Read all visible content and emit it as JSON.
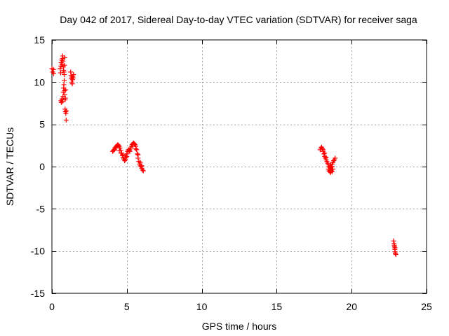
{
  "chart_data": {
    "type": "scatter",
    "title": "Day 042 of 2017, Sidereal Day-to-day VTEC variation (SDTVAR) for receiver saga",
    "xlabel": "GPS time / hours",
    "ylabel": "SDTVAR / TECUs",
    "xlim": [
      0,
      25
    ],
    "ylim": [
      -15,
      15
    ],
    "xticks": [
      0,
      5,
      10,
      15,
      20,
      25
    ],
    "yticks": [
      -15,
      -10,
      -5,
      0,
      5,
      10,
      15
    ],
    "xtick_labels": [
      "0",
      "5",
      "10",
      "15",
      "20",
      "25"
    ],
    "ytick_labels": [
      "-15",
      "-10",
      "-5",
      "0",
      "5",
      "10",
      "15"
    ],
    "grid": true,
    "marker": "+",
    "color": "#ff0000",
    "series": [
      {
        "name": "SDTVAR",
        "points": [
          [
            0.0,
            11.6
          ],
          [
            0.05,
            11.2
          ],
          [
            0.1,
            11.5
          ],
          [
            0.12,
            11.0
          ],
          [
            0.55,
            11.6
          ],
          [
            0.58,
            11.1
          ],
          [
            0.6,
            11.9
          ],
          [
            0.62,
            12.3
          ],
          [
            0.65,
            12.6
          ],
          [
            0.67,
            12.1
          ],
          [
            0.7,
            12.8
          ],
          [
            0.72,
            13.1
          ],
          [
            0.74,
            12.5
          ],
          [
            0.76,
            11.8
          ],
          [
            0.78,
            11.4
          ],
          [
            0.8,
            11.2
          ],
          [
            0.82,
            10.9
          ],
          [
            0.84,
            12.0
          ],
          [
            0.86,
            12.9
          ],
          [
            0.6,
            7.8
          ],
          [
            0.63,
            7.6
          ],
          [
            0.66,
            8.0
          ],
          [
            0.7,
            7.7
          ],
          [
            0.74,
            8.3
          ],
          [
            0.76,
            8.8
          ],
          [
            0.78,
            9.3
          ],
          [
            0.8,
            9.7
          ],
          [
            0.82,
            10.2
          ],
          [
            0.84,
            9.0
          ],
          [
            0.86,
            8.5
          ],
          [
            0.88,
            7.9
          ],
          [
            0.9,
            8.1
          ],
          [
            0.92,
            9.1
          ],
          [
            0.88,
            6.8
          ],
          [
            0.9,
            6.5
          ],
          [
            0.93,
            6.3
          ],
          [
            0.96,
            6.6
          ],
          [
            0.95,
            5.5
          ],
          [
            1.25,
            11.2
          ],
          [
            1.28,
            10.8
          ],
          [
            1.3,
            10.4
          ],
          [
            1.32,
            10.0
          ],
          [
            1.34,
            10.6
          ],
          [
            1.36,
            9.8
          ],
          [
            1.38,
            10.3
          ],
          [
            1.4,
            10.7
          ],
          [
            1.42,
            10.5
          ],
          [
            1.44,
            10.9
          ],
          [
            4.05,
            1.8
          ],
          [
            4.1,
            1.9
          ],
          [
            4.15,
            2.0
          ],
          [
            4.2,
            2.2
          ],
          [
            4.25,
            2.3
          ],
          [
            4.3,
            2.4
          ],
          [
            4.35,
            2.5
          ],
          [
            4.4,
            2.6
          ],
          [
            4.45,
            2.5
          ],
          [
            4.5,
            2.4
          ],
          [
            4.55,
            2.2
          ],
          [
            4.6,
            1.9
          ],
          [
            4.65,
            1.6
          ],
          [
            4.7,
            1.3
          ],
          [
            4.75,
            1.1
          ],
          [
            4.8,
            0.9
          ],
          [
            4.85,
            0.7
          ],
          [
            4.9,
            0.8
          ],
          [
            4.95,
            1.1
          ],
          [
            5.0,
            1.5
          ],
          [
            5.05,
            1.8
          ],
          [
            5.1,
            2.0
          ],
          [
            5.15,
            1.9
          ],
          [
            5.2,
            2.0
          ],
          [
            5.25,
            2.2
          ],
          [
            5.3,
            2.4
          ],
          [
            5.35,
            2.6
          ],
          [
            5.4,
            2.7
          ],
          [
            5.45,
            2.8
          ],
          [
            5.5,
            2.7
          ],
          [
            5.55,
            2.6
          ],
          [
            5.6,
            2.4
          ],
          [
            5.65,
            2.0
          ],
          [
            5.7,
            1.5
          ],
          [
            5.75,
            1.0
          ],
          [
            5.8,
            0.6
          ],
          [
            5.85,
            0.3
          ],
          [
            5.9,
            0.1
          ],
          [
            5.95,
            0.0
          ],
          [
            6.0,
            -0.2
          ],
          [
            6.05,
            -0.4
          ],
          [
            6.1,
            -0.5
          ],
          [
            4.3,
            2.2
          ],
          [
            4.5,
            1.9
          ],
          [
            4.6,
            1.6
          ],
          [
            4.75,
            1.4
          ],
          [
            4.9,
            1.3
          ],
          [
            5.0,
            1.2
          ],
          [
            5.2,
            1.8
          ],
          [
            5.4,
            2.4
          ],
          [
            5.6,
            2.1
          ],
          [
            5.75,
            1.4
          ],
          [
            5.9,
            0.5
          ],
          [
            6.0,
            0.1
          ],
          [
            17.9,
            2.0
          ],
          [
            17.95,
            2.2
          ],
          [
            18.0,
            2.3
          ],
          [
            18.05,
            2.1
          ],
          [
            18.1,
            1.8
          ],
          [
            18.15,
            1.5
          ],
          [
            18.2,
            1.2
          ],
          [
            18.25,
            1.0
          ],
          [
            18.3,
            0.8
          ],
          [
            18.35,
            0.6
          ],
          [
            18.4,
            0.4
          ],
          [
            18.45,
            0.2
          ],
          [
            18.5,
            0.0
          ],
          [
            18.55,
            -0.1
          ],
          [
            18.6,
            -0.2
          ],
          [
            18.65,
            0.0
          ],
          [
            18.7,
            0.3
          ],
          [
            18.75,
            0.5
          ],
          [
            18.8,
            0.7
          ],
          [
            18.85,
            0.8
          ],
          [
            18.9,
            1.0
          ],
          [
            18.1,
            2.0
          ],
          [
            18.2,
            1.6
          ],
          [
            18.3,
            1.1
          ],
          [
            18.45,
            -0.3
          ],
          [
            18.5,
            -0.5
          ],
          [
            18.55,
            -0.6
          ],
          [
            18.6,
            -0.7
          ],
          [
            18.65,
            -0.5
          ],
          [
            18.7,
            -0.6
          ],
          [
            18.75,
            -0.3
          ],
          [
            18.6,
            0.2
          ],
          [
            18.7,
            0.0
          ],
          [
            22.8,
            -8.8
          ],
          [
            22.83,
            -9.1
          ],
          [
            22.86,
            -9.5
          ],
          [
            22.88,
            -9.8
          ],
          [
            22.9,
            -10.1
          ],
          [
            22.92,
            -10.3
          ],
          [
            22.95,
            -10.4
          ],
          [
            22.85,
            -9.3
          ],
          [
            22.9,
            -9.6
          ]
        ]
      }
    ]
  }
}
